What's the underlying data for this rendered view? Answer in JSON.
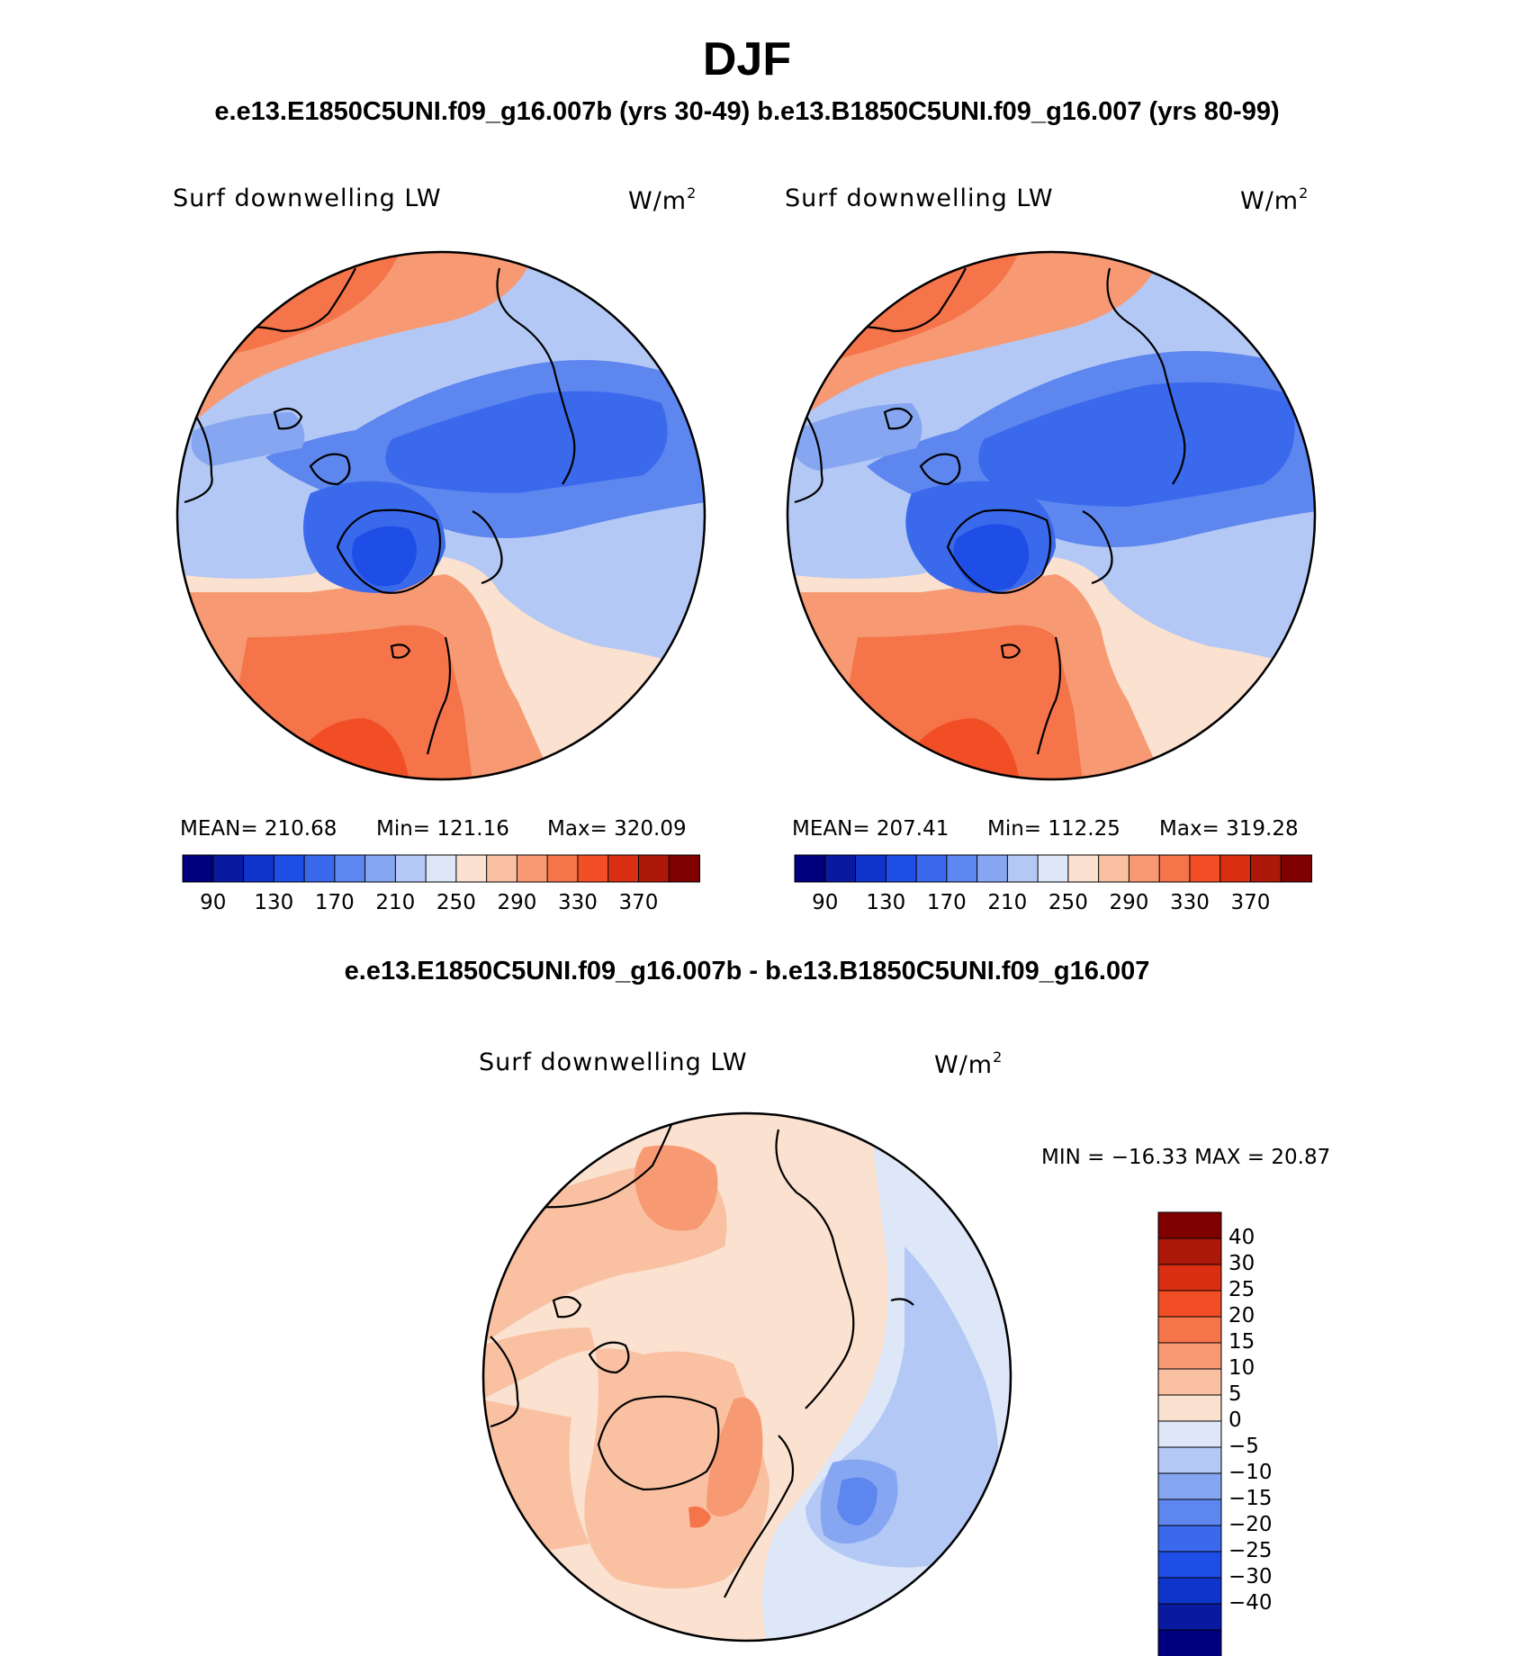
{
  "header": {
    "season": "DJF",
    "cases_line": "e.e13.E1850C5UNI.f09_g16.007b (yrs 30-49)  b.e13.B1850C5UNI.f09_g16.007 (yrs 80-99)",
    "diff_title": "e.e13.E1850C5UNI.f09_g16.007b - b.e13.B1850C5UNI.f09_g16.007"
  },
  "panels": [
    {
      "variable": "Surf downwelling LW",
      "units_base": "W/m",
      "units_exp": "2",
      "mean_label": "MEAN=",
      "mean": "210.68",
      "min_label": "Min=",
      "min": "121.16",
      "max_label": "Max=",
      "max": "320.09"
    },
    {
      "variable": "Surf downwelling LW",
      "units_base": "W/m",
      "units_exp": "2",
      "mean_label": "MEAN=",
      "mean": "207.41",
      "min_label": "Min=",
      "min": "112.25",
      "max_label": "Max=",
      "max": "319.28"
    }
  ],
  "diff_panel": {
    "variable": "Surf downwelling LW",
    "units_base": "W/m",
    "units_exp": "2",
    "minmax_text": "MIN = −16.33 MAX =   20.87"
  },
  "chart_data": [
    {
      "type": "heatmap",
      "title": "Surf downwelling LW (e.e13.E1850C5UNI.f09_g16.007b, yrs 30-49)",
      "units": "W/m2",
      "projection": "north polar stereographic",
      "stats": {
        "mean": 210.68,
        "min": 121.16,
        "max": 320.09
      },
      "contour_levels": [
        90,
        110,
        130,
        150,
        170,
        190,
        210,
        230,
        250,
        270,
        290,
        310,
        330,
        350,
        370
      ],
      "colorbar_tick_labels": [
        "90",
        "130",
        "170",
        "210",
        "250",
        "290",
        "330",
        "370"
      ]
    },
    {
      "type": "heatmap",
      "title": "Surf downwelling LW (b.e13.B1850C5UNI.f09_g16.007, yrs 80-99)",
      "units": "W/m2",
      "projection": "north polar stereographic",
      "stats": {
        "mean": 207.41,
        "min": 112.25,
        "max": 319.28
      },
      "contour_levels": [
        90,
        110,
        130,
        150,
        170,
        190,
        210,
        230,
        250,
        270,
        290,
        310,
        330,
        350,
        370
      ],
      "colorbar_tick_labels": [
        "90",
        "130",
        "170",
        "210",
        "250",
        "290",
        "330",
        "370"
      ]
    },
    {
      "type": "heatmap",
      "title": "Surf downwelling LW difference",
      "units": "W/m2",
      "projection": "north polar stereographic",
      "stats": {
        "min": -16.33,
        "max": 20.87
      },
      "contour_levels": [
        -40,
        -30,
        -25,
        -20,
        -15,
        -10,
        -5,
        0,
        5,
        10,
        15,
        20,
        25,
        30,
        40
      ],
      "colorbar_tick_labels": [
        "40",
        "30",
        "25",
        "20",
        "15",
        "10",
        "5",
        "0",
        "−5",
        "−10",
        "−15",
        "−20",
        "−25",
        "−30",
        "−40"
      ]
    }
  ],
  "colors": {
    "abs_scale": [
      "#00007f",
      "#0a1aa0",
      "#0e34cc",
      "#1f4ee6",
      "#3a69ec",
      "#5d86ef",
      "#86a6f1",
      "#b4c8f5",
      "#dde7f8",
      "#fbe1cf",
      "#f9c0a2",
      "#f79a74",
      "#f5744a",
      "#f14e26",
      "#d92e12",
      "#ae1808",
      "#7f0000"
    ],
    "diff_scale": [
      "#7f0000",
      "#ae1808",
      "#d92e12",
      "#f14e26",
      "#f5744a",
      "#f79a74",
      "#f9c0a2",
      "#fbe1cf",
      "#dde7f8",
      "#b4c8f5",
      "#86a6f1",
      "#5d86ef",
      "#3a69ec",
      "#1f4ee6",
      "#0e34cc",
      "#0a1aa0",
      "#00007f"
    ],
    "coast": "#000000"
  }
}
